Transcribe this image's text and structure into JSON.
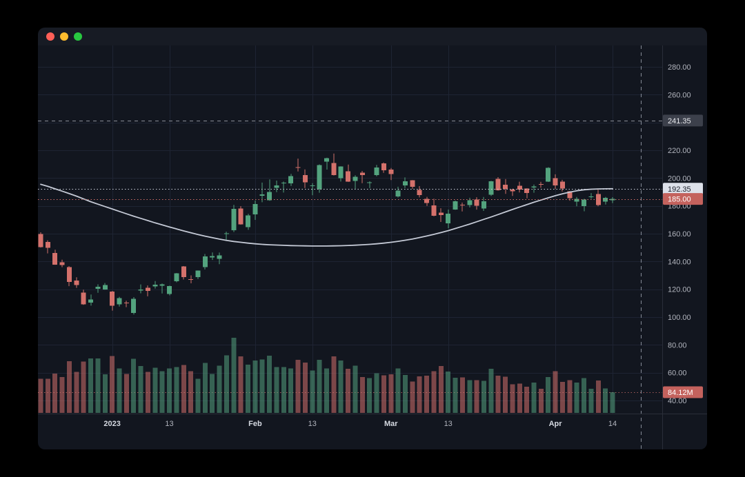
{
  "window": {
    "controls": [
      "close",
      "minimize",
      "zoom"
    ]
  },
  "colors": {
    "background": "#12161f",
    "grid": "#1e2433",
    "axis_border": "#2a2e39",
    "axis_text": "#b2b5be",
    "axis_text_major": "#d6dae2",
    "up": "#53a37e",
    "down": "#d4716b",
    "ma_line": "#c5cad6",
    "crosshair": "#9aa0ac",
    "chip_red_bg": "#c4625d",
    "chip_gray_bg": "#3c404b",
    "chip_light_bg": "#dde1ea"
  },
  "chart_data": {
    "type": "candlestick",
    "timeframe": "daily",
    "legend_position": "none",
    "grid": "on",
    "axis": {
      "price_ticks": [
        280,
        260,
        220,
        200,
        180,
        160,
        140,
        120,
        100,
        80,
        60,
        40
      ],
      "grid_prices": [
        280,
        260,
        240,
        220,
        200,
        180,
        160,
        140,
        120,
        100,
        80,
        60,
        40
      ],
      "price_range_visible": [
        30,
        296
      ],
      "tick_format": "0.00"
    },
    "time_axis": [
      {
        "i": 10,
        "label": "2023",
        "major": true
      },
      {
        "i": 18,
        "label": "13",
        "major": false
      },
      {
        "i": 30,
        "label": "Feb",
        "major": true
      },
      {
        "i": 38,
        "label": "13",
        "major": false
      },
      {
        "i": 49,
        "label": "Mar",
        "major": true
      },
      {
        "i": 57,
        "label": "13",
        "major": false
      },
      {
        "i": 72,
        "label": "Apr",
        "major": true
      },
      {
        "i": 80,
        "label": "14",
        "major": false
      }
    ],
    "price_lines": [
      {
        "text": "241.35",
        "value": 241.35,
        "style": "dashed",
        "line_color": "#8b8f99",
        "bg": "#3c404b",
        "fg": "#e8e9ed"
      },
      {
        "text": "192.35",
        "value": 192.35,
        "style": "dotted",
        "line_color": "#cfd3dd",
        "bg": "#dde1ea",
        "fg": "#1b1f2a"
      },
      {
        "text": "185.00",
        "value": 185.0,
        "style": "dotted",
        "line_color": "#d4716b",
        "bg": "#c4625d",
        "fg": "#ffffff"
      }
    ],
    "volume_line": {
      "text": "84.12M",
      "value": 84.12,
      "bg": "#c4625d",
      "fg": "#ffffff",
      "line_color": "#d4716b"
    },
    "crosshair_vertical_index": 84,
    "candle_columns": [
      "date",
      "open",
      "high",
      "low",
      "close",
      "volume_m"
    ],
    "candles": [
      [
        "2022-12-16",
        159.64,
        160.99,
        150.04,
        150.23,
        139.0
      ],
      [
        "2022-12-19",
        154.0,
        155.25,
        145.82,
        149.87,
        139.4
      ],
      [
        "2022-12-20",
        146.05,
        148.47,
        137.66,
        137.57,
        159.6
      ],
      [
        "2022-12-21",
        139.34,
        141.26,
        135.89,
        137.57,
        145.4
      ],
      [
        "2022-12-22",
        136.0,
        136.63,
        122.26,
        125.35,
        210.1
      ],
      [
        "2022-12-23",
        126.37,
        128.62,
        121.02,
        123.15,
        167.0
      ],
      [
        "2022-12-27",
        117.5,
        119.67,
        108.76,
        109.1,
        208.6
      ],
      [
        "2022-12-28",
        110.35,
        116.27,
        108.24,
        112.71,
        221.1
      ],
      [
        "2022-12-29",
        120.39,
        123.57,
        117.5,
        121.82,
        221.9
      ],
      [
        "2022-12-30",
        119.95,
        124.48,
        119.75,
        123.18,
        157.8
      ],
      [
        "2023-01-03",
        118.47,
        118.8,
        104.64,
        108.1,
        231.4
      ],
      [
        "2023-01-04",
        109.11,
        114.59,
        107.52,
        113.64,
        180.4
      ],
      [
        "2023-01-05",
        110.51,
        111.75,
        107.16,
        110.34,
        158.0
      ],
      [
        "2023-01-06",
        103.0,
        114.39,
        101.81,
        113.06,
        220.9
      ],
      [
        "2023-01-09",
        118.96,
        123.52,
        117.11,
        119.77,
        190.3
      ],
      [
        "2023-01-10",
        121.07,
        122.76,
        114.92,
        118.85,
        167.6
      ],
      [
        "2023-01-11",
        122.09,
        125.95,
        120.51,
        123.22,
        183.8
      ],
      [
        "2023-01-12",
        122.56,
        124.13,
        117.0,
        123.56,
        169.4
      ],
      [
        "2023-01-13",
        116.55,
        122.63,
        115.6,
        122.4,
        180.7
      ],
      [
        "2023-01-17",
        125.7,
        131.7,
        125.02,
        131.49,
        186.5
      ],
      [
        "2023-01-18",
        136.56,
        136.68,
        127.01,
        128.78,
        195.7
      ],
      [
        "2023-01-19",
        127.26,
        129.99,
        124.31,
        127.17,
        170.3
      ],
      [
        "2023-01-20",
        128.68,
        133.51,
        127.35,
        133.42,
        138.9
      ],
      [
        "2023-01-23",
        135.87,
        145.38,
        134.27,
        143.75,
        203.1
      ],
      [
        "2023-01-24",
        143.0,
        146.5,
        141.1,
        143.89,
        158.7
      ],
      [
        "2023-01-25",
        141.91,
        146.41,
        138.07,
        144.43,
        192.7
      ],
      [
        "2023-01-26",
        159.97,
        161.42,
        154.76,
        160.27,
        234.8
      ],
      [
        "2023-01-27",
        162.43,
        180.68,
        161.17,
        177.9,
        306.6
      ],
      [
        "2023-01-30",
        178.05,
        179.77,
        166.5,
        166.66,
        230.9
      ],
      [
        "2023-01-31",
        164.57,
        174.3,
        162.78,
        173.22,
        196.8
      ],
      [
        "2023-02-01",
        173.89,
        183.81,
        169.93,
        181.41,
        213.8
      ],
      [
        "2023-02-02",
        187.33,
        196.75,
        182.61,
        188.27,
        217.4
      ],
      [
        "2023-02-03",
        183.95,
        199.0,
        183.69,
        189.98,
        232.7
      ],
      [
        "2023-02-06",
        193.01,
        198.17,
        189.92,
        194.76,
        186.2
      ],
      [
        "2023-02-07",
        196.43,
        197.5,
        189.55,
        196.81,
        186.0
      ],
      [
        "2023-02-08",
        196.1,
        203.0,
        194.31,
        201.29,
        180.7
      ],
      [
        "2023-02-09",
        207.78,
        214.0,
        204.77,
        207.32,
        216.5
      ],
      [
        "2023-02-10",
        202.23,
        206.2,
        192.89,
        196.89,
        204.8
      ],
      [
        "2023-02-13",
        194.42,
        196.3,
        187.61,
        194.64,
        172.5
      ],
      [
        "2023-02-14",
        191.94,
        209.82,
        189.44,
        209.25,
        216.5
      ],
      [
        "2023-02-15",
        211.76,
        214.66,
        206.11,
        214.24,
        181.0
      ],
      [
        "2023-02-16",
        210.78,
        217.65,
        201.84,
        202.04,
        229.6
      ],
      [
        "2023-02-17",
        199.99,
        208.44,
        197.5,
        208.31,
        213.7
      ],
      [
        "2023-02-21",
        204.99,
        209.71,
        197.22,
        197.37,
        180.0
      ],
      [
        "2023-02-22",
        197.93,
        201.99,
        191.78,
        200.86,
        191.8
      ],
      [
        "2023-02-23",
        203.91,
        205.14,
        196.33,
        202.07,
        146.4
      ],
      [
        "2023-02-24",
        196.33,
        197.67,
        192.8,
        196.88,
        142.2
      ],
      [
        "2023-02-27",
        202.03,
        209.42,
        201.26,
        207.63,
        161.0
      ],
      [
        "2023-02-28",
        210.59,
        211.23,
        203.75,
        205.71,
        153.1
      ],
      [
        "2023-03-01",
        206.21,
        207.2,
        198.52,
        202.77,
        156.9
      ],
      [
        "2023-03-02",
        186.74,
        193.75,
        186.01,
        190.9,
        181.5
      ],
      [
        "2023-03-03",
        194.8,
        200.48,
        192.88,
        197.79,
        153.8
      ],
      [
        "2023-03-06",
        198.54,
        198.6,
        192.3,
        193.81,
        128.1
      ],
      [
        "2023-03-07",
        191.38,
        194.2,
        186.1,
        187.71,
        148.1
      ],
      [
        "2023-03-08",
        185.04,
        186.5,
        180.0,
        182.0,
        151.9
      ],
      [
        "2023-03-09",
        180.25,
        185.18,
        172.51,
        172.92,
        170.0
      ],
      [
        "2023-03-10",
        175.13,
        178.29,
        168.44,
        173.44,
        191.5
      ],
      [
        "2023-03-13",
        167.46,
        177.35,
        163.91,
        174.48,
        167.8
      ],
      [
        "2023-03-14",
        177.31,
        183.8,
        177.14,
        183.26,
        143.7
      ],
      [
        "2023-03-15",
        180.8,
        182.34,
        176.03,
        180.45,
        145.1
      ],
      [
        "2023-03-16",
        180.57,
        185.81,
        178.84,
        184.13,
        133.3
      ],
      [
        "2023-03-17",
        184.52,
        186.22,
        177.33,
        180.13,
        133.4
      ],
      [
        "2023-03-20",
        178.08,
        186.44,
        176.35,
        183.25,
        130.0
      ],
      [
        "2023-03-21",
        188.0,
        198.0,
        187.15,
        197.58,
        180.0
      ],
      [
        "2023-03-22",
        199.3,
        200.66,
        190.95,
        191.15,
        151.5
      ],
      [
        "2023-03-23",
        195.26,
        199.31,
        188.65,
        192.22,
        147.4
      ],
      [
        "2023-03-24",
        191.65,
        192.36,
        187.15,
        190.41,
        116.3
      ],
      [
        "2023-03-27",
        194.42,
        197.39,
        189.6,
        191.81,
        119.7
      ],
      [
        "2023-03-28",
        192.36,
        192.68,
        185.43,
        189.19,
        106.1
      ],
      [
        "2023-03-29",
        193.13,
        195.29,
        189.44,
        193.88,
        123.7
      ],
      [
        "2023-03-30",
        195.58,
        197.33,
        193.0,
        195.28,
        98.8
      ],
      [
        "2023-03-31",
        197.53,
        207.79,
        197.2,
        207.46,
        146.1
      ],
      [
        "2023-04-03",
        199.91,
        202.69,
        192.2,
        194.77,
        169.6
      ],
      [
        "2023-04-04",
        197.32,
        198.74,
        190.32,
        192.58,
        126.5
      ],
      [
        "2023-04-05",
        190.52,
        190.68,
        183.76,
        185.52,
        132.9
      ],
      [
        "2023-04-06",
        183.08,
        186.39,
        179.74,
        185.06,
        123.9
      ],
      [
        "2023-04-10",
        179.94,
        185.1,
        176.11,
        184.51,
        141.3
      ],
      [
        "2023-04-11",
        186.69,
        189.19,
        185.18,
        186.79,
        97.6
      ],
      [
        "2023-04-12",
        188.54,
        191.58,
        179.75,
        180.54,
        131.5
      ],
      [
        "2023-04-13",
        182.96,
        186.5,
        180.94,
        185.9,
        99.4
      ],
      [
        "2023-04-14",
        183.95,
        186.28,
        182.01,
        185.0,
        84.12
      ]
    ],
    "moving_average_values": [
      195.5,
      194.0,
      192.3,
      190.6,
      188.8,
      187.0,
      185.0,
      183.0,
      181.2,
      179.5,
      177.8,
      176.0,
      174.3,
      172.6,
      171.0,
      169.4,
      167.8,
      166.3,
      164.8,
      163.4,
      162.0,
      160.7,
      159.4,
      158.2,
      157.1,
      156.1,
      155.2,
      154.4,
      153.8,
      153.2,
      152.7,
      152.3,
      152.0,
      151.8,
      151.6,
      151.4,
      151.3,
      151.2,
      151.1,
      151.1,
      151.1,
      151.2,
      151.3,
      151.5,
      151.7,
      152.0,
      152.3,
      152.7,
      153.2,
      153.8,
      154.5,
      155.3,
      156.2,
      157.2,
      158.3,
      159.5,
      160.8,
      162.2,
      163.7,
      165.3,
      166.9,
      168.6,
      170.3,
      172.0,
      173.8,
      175.6,
      177.4,
      179.2,
      180.9,
      182.6,
      184.2,
      185.8,
      187.3,
      188.7,
      189.9,
      190.9,
      191.6,
      192.0,
      192.2,
      192.3,
      192.35
    ]
  }
}
